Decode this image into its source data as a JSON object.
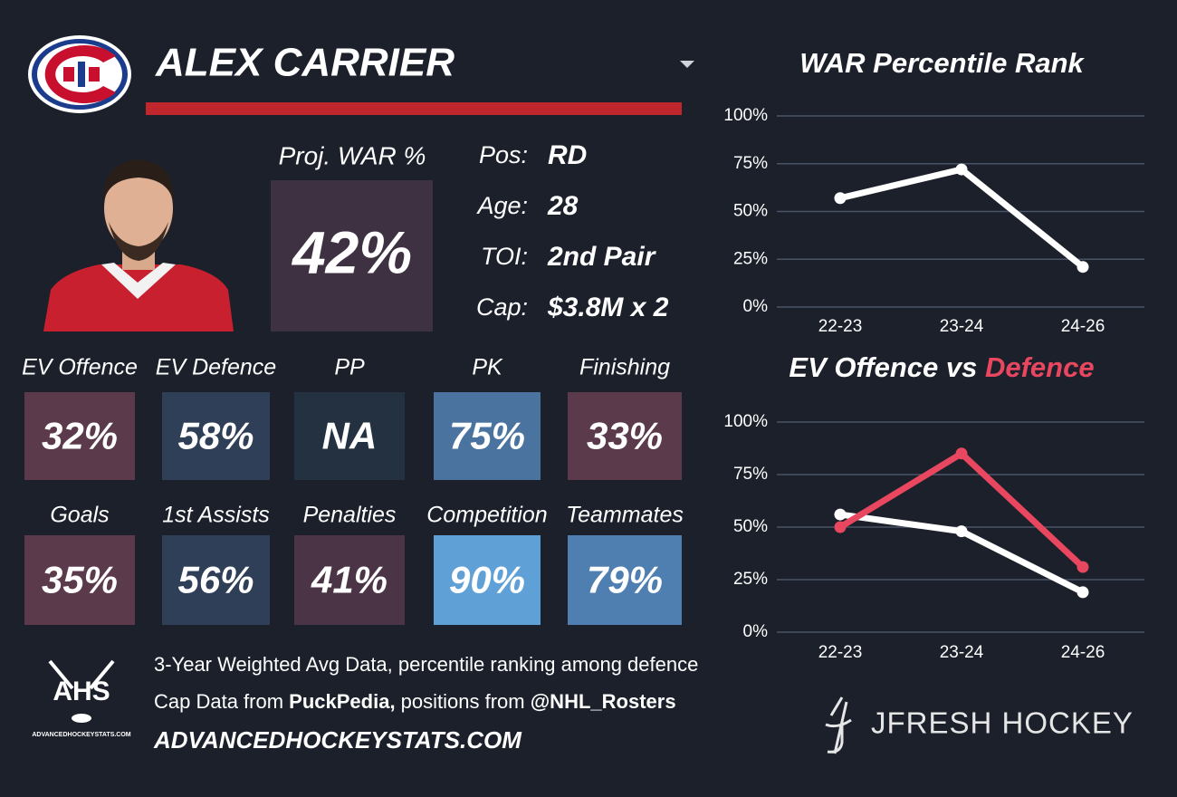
{
  "header": {
    "name": "ALEX CARRIER"
  },
  "proj_war": {
    "label": "Proj. WAR %",
    "value": "42%"
  },
  "info": [
    {
      "label": "Pos:",
      "value": "RD"
    },
    {
      "label": "Age:",
      "value": "28"
    },
    {
      "label": "TOI:",
      "value": "2nd Pair"
    },
    {
      "label": "Cap:",
      "value": "$3.8M x 2"
    }
  ],
  "tiles": [
    {
      "label": "EV Offence",
      "value": "32%",
      "color": "#5b3a4b"
    },
    {
      "label": "EV Defence",
      "value": "58%",
      "color": "#2e3f57"
    },
    {
      "label": "PP",
      "value": "NA",
      "color": "#233140"
    },
    {
      "label": "PK",
      "value": "75%",
      "color": "#4a73a0"
    },
    {
      "label": "Finishing",
      "value": "33%",
      "color": "#5b3a4b"
    },
    {
      "label": "Goals",
      "value": "35%",
      "color": "#5b3a4b"
    },
    {
      "label": "1st Assists",
      "value": "56%",
      "color": "#2e3f57"
    },
    {
      "label": "Penalties",
      "value": "41%",
      "color": "#4a3446"
    },
    {
      "label": "Competition",
      "value": "90%",
      "color": "#5fa0d6"
    },
    {
      "label": "Teammates",
      "value": "79%",
      "color": "#4f7fb0"
    }
  ],
  "footer": {
    "line1": "3-Year Weighted Avg Data, percentile ranking among defence",
    "line2": [
      {
        "text": "Cap Data from ",
        "bold": false
      },
      {
        "text": "PuckPedia,",
        "bold": true
      },
      {
        "text": " positions from ",
        "bold": false
      },
      {
        "text": "@NHL_Rosters",
        "bold": true
      }
    ],
    "line3": "ADVANCEDHOCKEYSTATS.COM",
    "logo_text": "AHS",
    "logo_sub": "ADVANCEDHOCKEYSTATS.COM",
    "brand": "JFRESH HOCKEY"
  },
  "chart_data": [
    {
      "type": "line",
      "title_parts": [
        {
          "text": "WAR Percentile Rank",
          "color": "#ffffff"
        }
      ],
      "categories": [
        "22-23",
        "23-24",
        "24-26"
      ],
      "series": [
        {
          "color": "#ffffff",
          "values": [
            57,
            72,
            21
          ]
        }
      ],
      "ylim": [
        0,
        100
      ],
      "yticks": [
        {
          "value": 0,
          "label": "0%"
        },
        {
          "value": 25,
          "label": "25%"
        },
        {
          "value": 50,
          "label": "50%"
        },
        {
          "value": 75,
          "label": "75%"
        },
        {
          "value": 100,
          "label": "100%"
        }
      ],
      "grid": true
    },
    {
      "type": "line",
      "title_parts": [
        {
          "text": "EV Offence vs ",
          "color": "#ffffff"
        },
        {
          "text": "Defence",
          "color": "#e8475f"
        }
      ],
      "categories": [
        "22-23",
        "23-24",
        "24-26"
      ],
      "series": [
        {
          "color": "#ffffff",
          "values": [
            56,
            48,
            19
          ]
        },
        {
          "color": "#e8475f",
          "values": [
            50,
            85,
            31
          ]
        }
      ],
      "ylim": [
        0,
        100
      ],
      "yticks": [
        {
          "value": 0,
          "label": "0%"
        },
        {
          "value": 25,
          "label": "25%"
        },
        {
          "value": 50,
          "label": "50%"
        },
        {
          "value": 75,
          "label": "75%"
        },
        {
          "value": 100,
          "label": "100%"
        }
      ],
      "grid": true
    }
  ]
}
